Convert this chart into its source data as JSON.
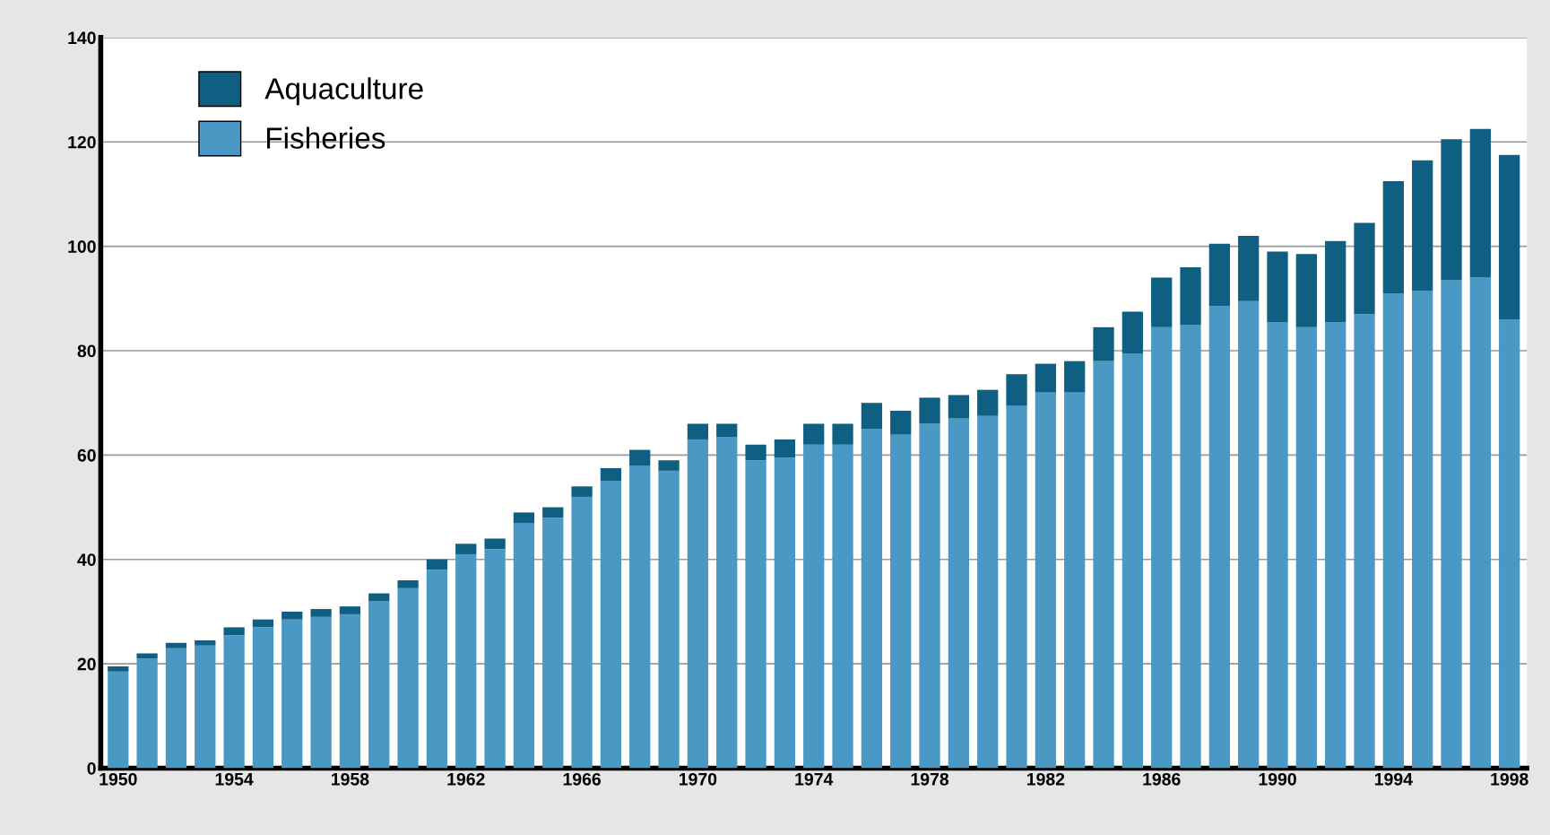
{
  "chart_data": {
    "type": "bar",
    "stacked": true,
    "categories": [
      "1950",
      null,
      null,
      null,
      "1954",
      null,
      null,
      null,
      "1958",
      null,
      null,
      null,
      "1962",
      null,
      null,
      null,
      "1966",
      null,
      null,
      null,
      "1970",
      null,
      null,
      null,
      "1974",
      null,
      null,
      null,
      "1978",
      null,
      null,
      null,
      "1982",
      null,
      null,
      null,
      "1986",
      null,
      null,
      null,
      "1990",
      null,
      null,
      null,
      "1994",
      null,
      null,
      null,
      "1998"
    ],
    "series": [
      {
        "name": "Fisheries",
        "color": "#4a98c4",
        "values": [
          18.5,
          21,
          23,
          23.5,
          25.5,
          27,
          28.5,
          29,
          29.5,
          32,
          34.5,
          38,
          41,
          42,
          47,
          48,
          52,
          55,
          58,
          57,
          63,
          63.5,
          59,
          59.5,
          62,
          62,
          65,
          64,
          66,
          67,
          67.5,
          69.5,
          72,
          72,
          78,
          79.5,
          84.5,
          85,
          88.5,
          89.5,
          85.5,
          84.5,
          85.5,
          87,
          91,
          91.5,
          93.5,
          94,
          86
        ]
      },
      {
        "name": "Aquaculture",
        "color": "#0e5f82",
        "values": [
          1,
          1,
          1,
          1,
          1.5,
          1.5,
          1.5,
          1.5,
          1.5,
          1.5,
          1.5,
          2,
          2,
          2,
          2,
          2,
          2,
          2.5,
          3,
          2,
          3,
          2.5,
          3,
          3.5,
          4,
          4,
          5,
          4.5,
          5,
          4.5,
          5,
          6,
          5.5,
          6,
          6.5,
          8,
          9.5,
          11,
          12,
          12.5,
          13.5,
          14,
          15.5,
          17.5,
          21.5,
          25,
          27,
          28.5,
          31.5
        ]
      }
    ],
    "ylim": [
      0,
      140
    ],
    "yticks": [
      0,
      20,
      40,
      60,
      80,
      100,
      120,
      140
    ],
    "grid": "y",
    "legend": "top left"
  }
}
